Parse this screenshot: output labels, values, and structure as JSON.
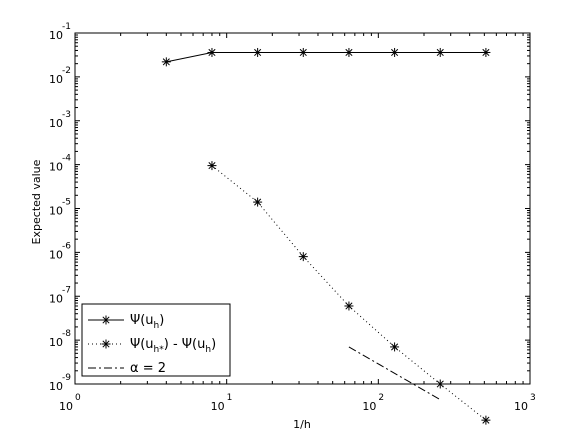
{
  "chart_data": {
    "type": "line",
    "xlabel": "1/h",
    "ylabel": "Expected value",
    "xscale": "log",
    "yscale": "log",
    "xlim": [
      1,
      1000
    ],
    "ylim": [
      1e-09,
      0.1
    ],
    "grid": false,
    "legend_position": "bottom-left",
    "x_ticks": [
      {
        "base": "10",
        "exp": "0"
      },
      {
        "base": "10",
        "exp": "1"
      },
      {
        "base": "10",
        "exp": "2"
      },
      {
        "base": "10",
        "exp": "3"
      }
    ],
    "y_ticks": [
      {
        "base": "10",
        "exp": "-1"
      },
      {
        "base": "10",
        "exp": "-2"
      },
      {
        "base": "10",
        "exp": "-3"
      },
      {
        "base": "10",
        "exp": "-4"
      },
      {
        "base": "10",
        "exp": "-5"
      },
      {
        "base": "10",
        "exp": "-6"
      },
      {
        "base": "10",
        "exp": "-7"
      },
      {
        "base": "10",
        "exp": "-8"
      },
      {
        "base": "10",
        "exp": "-9"
      }
    ],
    "series": [
      {
        "style": "solid",
        "marker": "asterisk",
        "x": [
          4,
          8,
          16,
          32,
          64,
          128,
          256,
          512
        ],
        "y": [
          0.022,
          0.036,
          0.036,
          0.036,
          0.036,
          0.036,
          0.036,
          0.036
        ]
      },
      {
        "style": "dotted",
        "marker": "asterisk",
        "x": [
          8,
          16,
          32,
          64,
          128,
          256,
          512
        ],
        "y": [
          9.5e-05,
          1.4e-05,
          8e-07,
          6e-08,
          7e-09,
          1e-09,
          1.5e-10
        ]
      },
      {
        "style": "dashdot",
        "marker": "none",
        "x": [
          64,
          256
        ],
        "y": [
          7e-09,
          4.4e-10
        ]
      }
    ],
    "legend": [
      {
        "symbol": "Ψ",
        "open": "(u",
        "sub": "h",
        "close": ")"
      },
      {
        "symbol": "Ψ",
        "open": "(u",
        "sub": "h*",
        "mid": ") - ",
        "symbol2": "Ψ",
        "open2": "(u",
        "sub2": "h",
        "close": ")"
      },
      {
        "symbol": "α",
        "text": " = 2"
      }
    ]
  }
}
